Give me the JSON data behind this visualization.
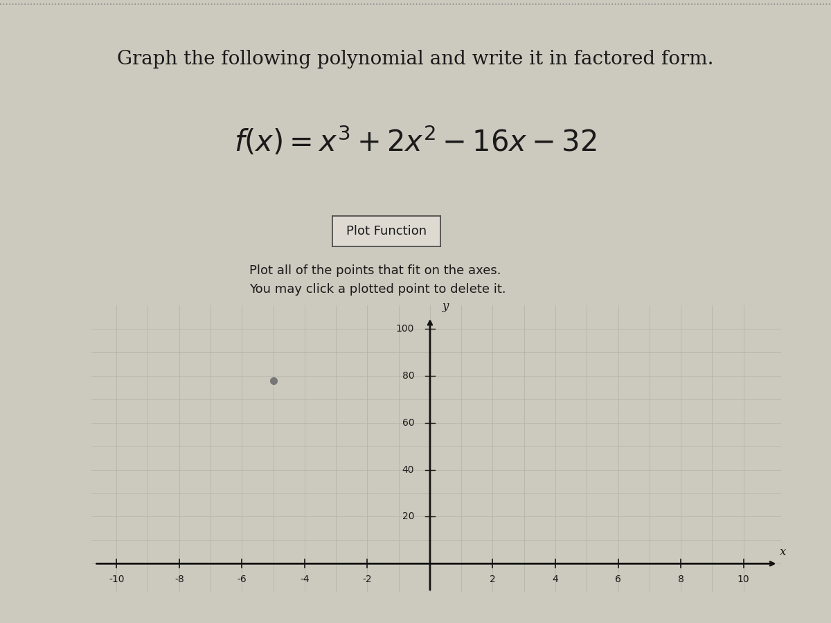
{
  "title": "Graph the following polynomial and write it in factored form.",
  "equation_display": "$f(x) = x^3 + 2x^2 - 16x - 32$",
  "button_text": "Plot Function",
  "instruction_line1": "Plot all of the points that fit on the axes.",
  "instruction_line2": "You may click a plotted point to delete it.",
  "xlabel": "x",
  "ylabel": "y",
  "xlim": [
    -10.8,
    11.2
  ],
  "ylim": [
    -12,
    110
  ],
  "xtick_vals": [
    -10,
    -8,
    -6,
    -4,
    -2,
    2,
    4,
    6,
    8,
    10
  ],
  "ytick_vals": [
    20,
    40,
    60,
    80,
    100
  ],
  "bg_color": "#ccc9be",
  "grid_color_major": "#b8b4a8",
  "grid_color_minor": "#c4c0b5",
  "text_color": "#1a1a1a",
  "dot_x": -5,
  "dot_y": 78,
  "dot_color": "#777777",
  "axis_color": "#111111",
  "btn_bg": "#dedad2",
  "btn_border": "#444444",
  "top_border_color": "#888888",
  "title_fontsize": 20,
  "eq_fontsize": 30,
  "btn_fontsize": 13,
  "instr_fontsize": 13,
  "tick_label_fontsize": 10,
  "axis_label_fontsize": 12
}
